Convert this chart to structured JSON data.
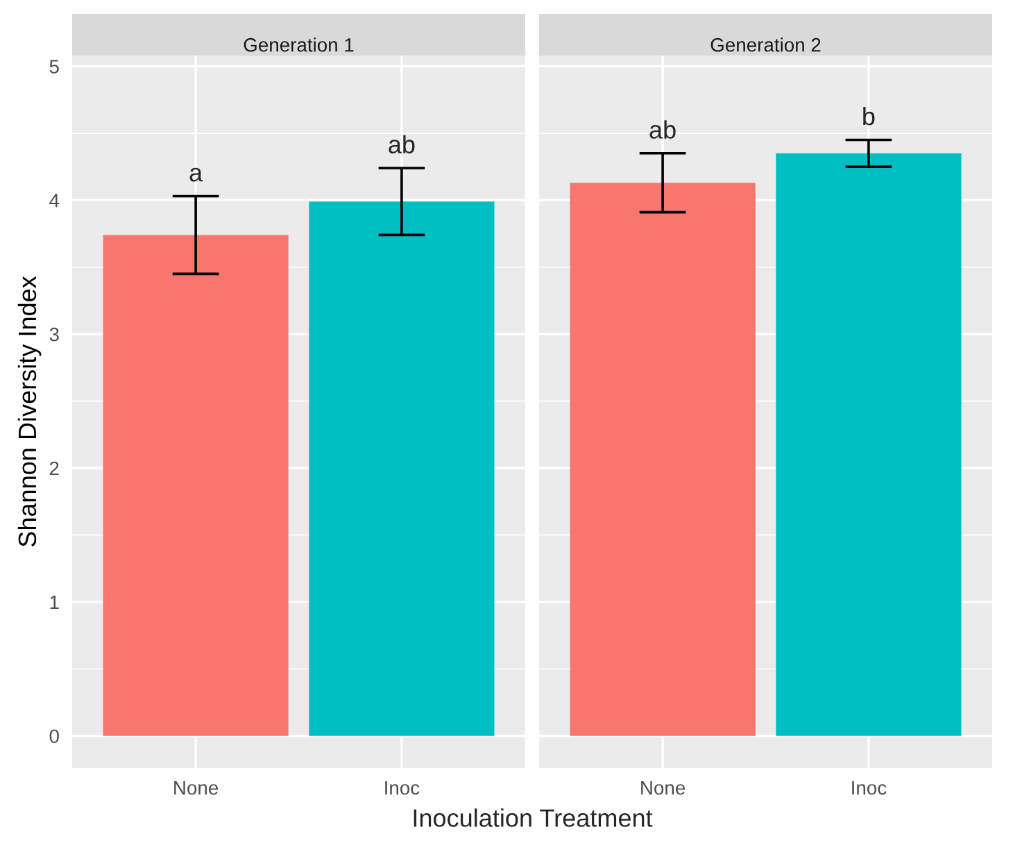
{
  "chart_data": [
    {
      "type": "bar",
      "title": "Generation 1",
      "ylabel": "Shannon Diversity Index",
      "xlabel": "Inoculation Treatment",
      "categories": [
        "None",
        "Inoc"
      ],
      "values": [
        3.74,
        3.99
      ],
      "errors": [
        0.29,
        0.25
      ],
      "colors": [
        "#f8766d",
        "#00bfc4"
      ],
      "ylim": [
        -0.24,
        5.08
      ],
      "yticks": [
        0,
        1,
        2,
        3,
        4,
        5
      ],
      "grid": true,
      "annotations": [
        "a",
        "ab"
      ]
    },
    {
      "type": "bar",
      "title": "Generation 2",
      "categories": [
        "None",
        "Inoc"
      ],
      "values": [
        4.13,
        4.35
      ],
      "errors": [
        0.22,
        0.1
      ],
      "colors": [
        "#f8766d",
        "#00bfc4"
      ],
      "ylim": [
        -0.24,
        5.08
      ],
      "yticks": [
        0,
        1,
        2,
        3,
        4,
        5
      ],
      "grid": true,
      "tick_labels": "x",
      "annotations": [
        "ab",
        "b"
      ]
    }
  ]
}
